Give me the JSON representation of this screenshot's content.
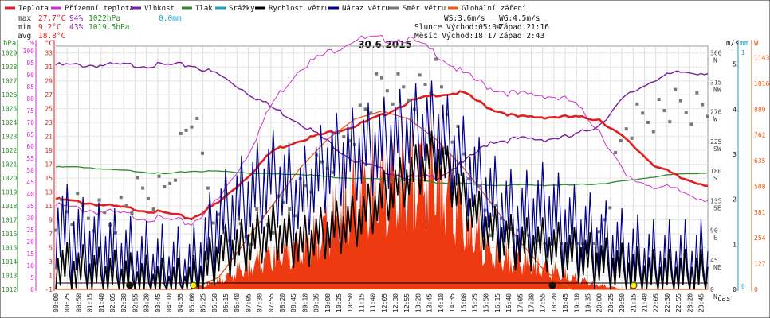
{
  "chart_data": {
    "type": "line",
    "title": "30.6.2015",
    "legend": [
      {
        "label": "Teplota",
        "color": "#e02020"
      },
      {
        "label": "Přízemní teplota",
        "color": "#cc33cc"
      },
      {
        "label": "Vlhkost",
        "color": "#7a1fa2"
      },
      {
        "label": "Tlak",
        "color": "#2e8b2e"
      },
      {
        "label": "Srážky",
        "color": "#17a3c9"
      },
      {
        "label": "Rychlost větru",
        "color": "#000000"
      },
      {
        "label": "Náraz větru",
        "color": "#00008b"
      },
      {
        "label": "Směr větru",
        "color": "#777777"
      },
      {
        "label": "Globální záření",
        "color": "#ee5511"
      }
    ],
    "stats": {
      "max_label": "max",
      "max_temp": "27.7°C",
      "max_hum": "94%",
      "max_press": "1022hPa",
      "rain": "0.0mm",
      "min_label": "min",
      "min_temp": "9.2°C",
      "min_hum": "43%",
      "min_press": "1019.5hPa",
      "avg_label": "avg",
      "avg_temp": "18.8°C"
    },
    "wind_info": {
      "ws": "WS:3.6m/s",
      "wg": "WG:4.5m/s"
    },
    "sun_info": {
      "rise": "Slunce Východ:05:04",
      "set": "Západ:21:16"
    },
    "moon_info": {
      "rise": "Měsíc  Východ:18:17",
      "set": "Západ:2:43"
    },
    "axis_units": {
      "press": "hPa",
      "hum": "%",
      "temp": "°C",
      "wind": "m/s",
      "rain": "mm",
      "rad": "W",
      "time": "čas"
    },
    "press_ticks": [
      "1029",
      "1028",
      "1027",
      "1026",
      "1025",
      "1024",
      "1023",
      "1022",
      "1021",
      "1020",
      "1019",
      "1018",
      "1017",
      "1016",
      "1015",
      "1014",
      "1013",
      "1012"
    ],
    "hum_ticks": [
      "100",
      "95",
      "90",
      "85",
      "80",
      "75",
      "70",
      "65",
      "60",
      "55",
      "50",
      "45",
      "40",
      "35",
      "30",
      "25",
      "20",
      "15",
      "10",
      "5",
      "0"
    ],
    "temp_ticks": [
      "33",
      "31",
      "29",
      "27",
      "25",
      "23",
      "21",
      "19",
      "17",
      "15",
      "13",
      "11",
      "9",
      "7",
      "5",
      "3",
      "1",
      "-1"
    ],
    "dir_ticks": [
      {
        "deg": "360",
        "dir": "N"
      },
      {
        "deg": "315",
        "dir": "NW"
      },
      {
        "deg": "270",
        "dir": "W"
      },
      {
        "deg": "225",
        "dir": "SW"
      },
      {
        "deg": "180",
        "dir": "S"
      },
      {
        "deg": "135",
        "dir": "SE"
      },
      {
        "deg": "90",
        "dir": "E"
      },
      {
        "deg": "45",
        "dir": "NE"
      },
      {
        "deg": "0",
        "dir": "N"
      }
    ],
    "wind_ticks": [
      "5",
      "4",
      "3",
      "2",
      "1",
      "0"
    ],
    "rain_ticks": [
      "1",
      "0"
    ],
    "rad_ticks": [
      "1143",
      "1016",
      "889",
      "762",
      "635",
      "508",
      "381",
      "254",
      "127",
      "0"
    ],
    "time_labels": [
      "00:00",
      "00:25",
      "00:50",
      "01:15",
      "01:40",
      "02:05",
      "02:30",
      "02:55",
      "03:20",
      "03:45",
      "04:10",
      "04:35",
      "05:00",
      "05:25",
      "05:50",
      "06:15",
      "06:40",
      "07:05",
      "07:30",
      "07:55",
      "08:20",
      "08:45",
      "09:10",
      "09:35",
      "10:00",
      "10:25",
      "10:50",
      "11:15",
      "11:40",
      "12:05",
      "12:30",
      "12:55",
      "13:20",
      "13:45",
      "14:10",
      "14:35",
      "15:00",
      "15:25",
      "15:50",
      "16:15",
      "16:40",
      "17:05",
      "17:30",
      "17:55",
      "18:20",
      "18:45",
      "19:10",
      "19:35",
      "20:00",
      "20:25",
      "20:50",
      "21:15",
      "21:40",
      "22:05",
      "22:30",
      "22:55",
      "23:20",
      "23:45"
    ],
    "hours": [
      0,
      1,
      2,
      3,
      4,
      5,
      6,
      7,
      8,
      9,
      10,
      11,
      12,
      13,
      14,
      15,
      16,
      17,
      18,
      19,
      20,
      21,
      22,
      23,
      24
    ],
    "temperature": [
      12.0,
      11.5,
      11.0,
      10.5,
      10.0,
      9.2,
      11.5,
      15.0,
      19.0,
      20.5,
      21.5,
      22.5,
      24.0,
      26.0,
      27.0,
      27.3,
      25.0,
      23.8,
      23.8,
      23.8,
      23.5,
      20.5,
      17.0,
      15.0,
      14.0
    ],
    "ground_temp": [
      11.0,
      10.5,
      10.0,
      9.5,
      9.0,
      8.5,
      12.0,
      18.0,
      26.0,
      31.0,
      33.0,
      35.0,
      35.0,
      35.0,
      33.0,
      30.0,
      28.0,
      27.0,
      27.0,
      26.0,
      22.0,
      15.0,
      14.0,
      13.0,
      12.0
    ],
    "humidity": [
      94,
      94,
      94,
      94,
      94,
      94,
      90,
      83,
      76,
      70,
      62,
      54,
      50,
      47,
      47,
      53,
      62,
      63,
      63,
      64,
      69,
      81,
      88,
      91,
      91
    ],
    "pressure": [
      1020.8,
      1020.8,
      1020.6,
      1020.5,
      1020.3,
      1020.5,
      1020.5,
      1020.4,
      1020.3,
      1020.3,
      1020.1,
      1020.0,
      1019.9,
      1019.9,
      1019.7,
      1019.6,
      1019.5,
      1019.5,
      1019.5,
      1019.5,
      1019.6,
      1019.8,
      1020.1,
      1020.3,
      1020.4
    ],
    "wind_speed": [
      0.5,
      0.4,
      0.3,
      0.2,
      0.1,
      0.1,
      0.8,
      1.0,
      1.3,
      1.0,
      1.3,
      1.5,
      2.0,
      2.5,
      3.0,
      2.0,
      1.3,
      1.0,
      1.0,
      0.8,
      0.6,
      0.4,
      0.3,
      0.3,
      0.3
    ],
    "wind_gust": [
      1.5,
      1.0,
      0.8,
      0.5,
      0.4,
      0.3,
      1.5,
      2.0,
      2.5,
      2.0,
      2.8,
      3.0,
      3.2,
      3.5,
      3.6,
      2.8,
      2.0,
      1.5,
      1.8,
      1.3,
      1.0,
      0.7,
      0.5,
      0.5,
      0.5
    ],
    "radiation": [
      0,
      0,
      0,
      0,
      0,
      0,
      60,
      150,
      250,
      300,
      420,
      650,
      720,
      760,
      820,
      500,
      250,
      200,
      150,
      80,
      30,
      0,
      0,
      0,
      0
    ],
    "radiation_clear": [
      0,
      0,
      0,
      0,
      0,
      0,
      60,
      240,
      420,
      600,
      740,
      840,
      880,
      840,
      740,
      600,
      430,
      250,
      90,
      0,
      0,
      0,
      0,
      0,
      0
    ],
    "wind_dir": [
      120,
      115,
      110,
      140,
      150,
      265,
      90,
      80,
      110,
      150,
      190,
      250,
      310,
      300,
      320,
      200,
      100,
      90,
      70,
      70,
      70,
      250,
      270,
      275,
      275
    ],
    "sun_markers": [
      {
        "h": 5.07,
        "kind": "sunrise"
      },
      {
        "h": 21.27,
        "kind": "sunset"
      }
    ],
    "moon_markers": [
      {
        "h": 2.72,
        "kind": "moonset"
      },
      {
        "h": 18.28,
        "kind": "moonrise"
      }
    ],
    "ranges": {
      "temp": [
        -1,
        34
      ],
      "hum": [
        0,
        102
      ],
      "press": [
        1012,
        1029.5
      ],
      "wind": [
        0,
        5.4
      ],
      "dir": [
        0,
        370
      ],
      "rad": [
        0,
        1200
      ]
    }
  }
}
